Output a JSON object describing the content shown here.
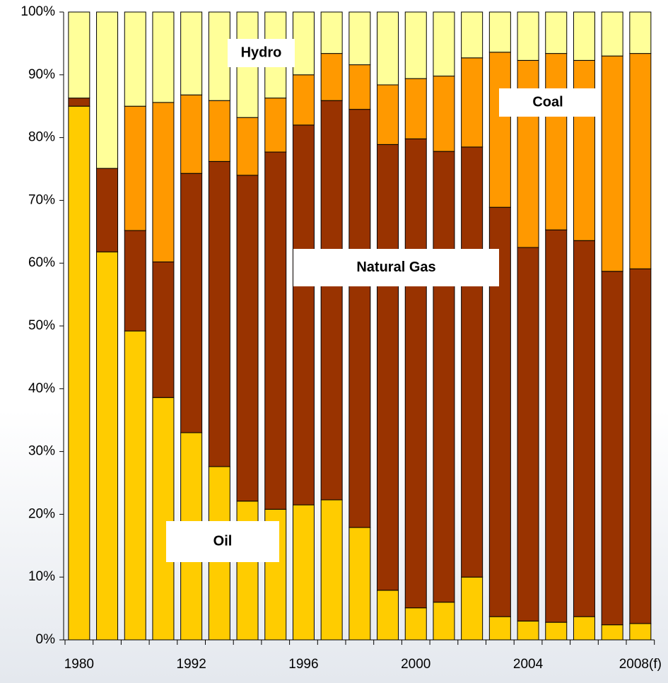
{
  "chart_data": {
    "type": "stacked_bar",
    "categories": [
      "1980",
      null,
      null,
      null,
      "1992",
      null,
      null,
      null,
      "1996",
      null,
      null,
      null,
      "2000",
      null,
      null,
      null,
      "2004",
      null,
      null,
      null,
      "2008(f)"
    ],
    "series": [
      {
        "name": "Oil",
        "color": "#ffcc00",
        "values": [
          85.0,
          61.8,
          49.2,
          38.6,
          33.0,
          27.6,
          22.1,
          20.8,
          21.5,
          22.3,
          17.9,
          7.9,
          5.1,
          6.0,
          10.0,
          3.7,
          3.0,
          2.8,
          3.7,
          2.4,
          2.6
        ]
      },
      {
        "name": "Natural Gas",
        "color": "#993300",
        "values": [
          1.3,
          13.3,
          16.0,
          21.6,
          41.3,
          48.6,
          51.9,
          56.9,
          60.5,
          63.6,
          66.6,
          71.0,
          74.7,
          71.8,
          68.5,
          65.2,
          59.5,
          62.5,
          59.9,
          56.3,
          56.5
        ]
      },
      {
        "name": "Coal",
        "color": "#ff9900",
        "values": [
          0,
          0,
          19.8,
          25.4,
          12.5,
          9.7,
          9.2,
          8.6,
          8.0,
          7.5,
          7.1,
          9.5,
          9.6,
          12.0,
          14.2,
          24.7,
          29.8,
          28.1,
          28.7,
          34.3,
          34.3
        ]
      },
      {
        "name": "Hydro",
        "color": "#ffff99",
        "values": [
          13.7,
          24.9,
          15.0,
          14.4,
          13.2,
          14.1,
          16.8,
          13.7,
          10.0,
          6.6,
          8.4,
          11.6,
          10.6,
          10.2,
          7.3,
          6.4,
          7.7,
          6.6,
          7.7,
          7.0,
          6.6
        ]
      }
    ],
    "ylim": [
      0,
      100
    ],
    "yticks": [
      {
        "value": 0,
        "label": "0%"
      },
      {
        "value": 10,
        "label": "10%"
      },
      {
        "value": 20,
        "label": "20%"
      },
      {
        "value": 30,
        "label": "30%"
      },
      {
        "value": 40,
        "label": "40%"
      },
      {
        "value": 50,
        "label": "50%"
      },
      {
        "value": 60,
        "label": "60%"
      },
      {
        "value": 70,
        "label": "70%"
      },
      {
        "value": 80,
        "label": "80%"
      },
      {
        "value": 90,
        "label": "90%"
      },
      {
        "value": 100,
        "label": "100%"
      }
    ]
  }
}
